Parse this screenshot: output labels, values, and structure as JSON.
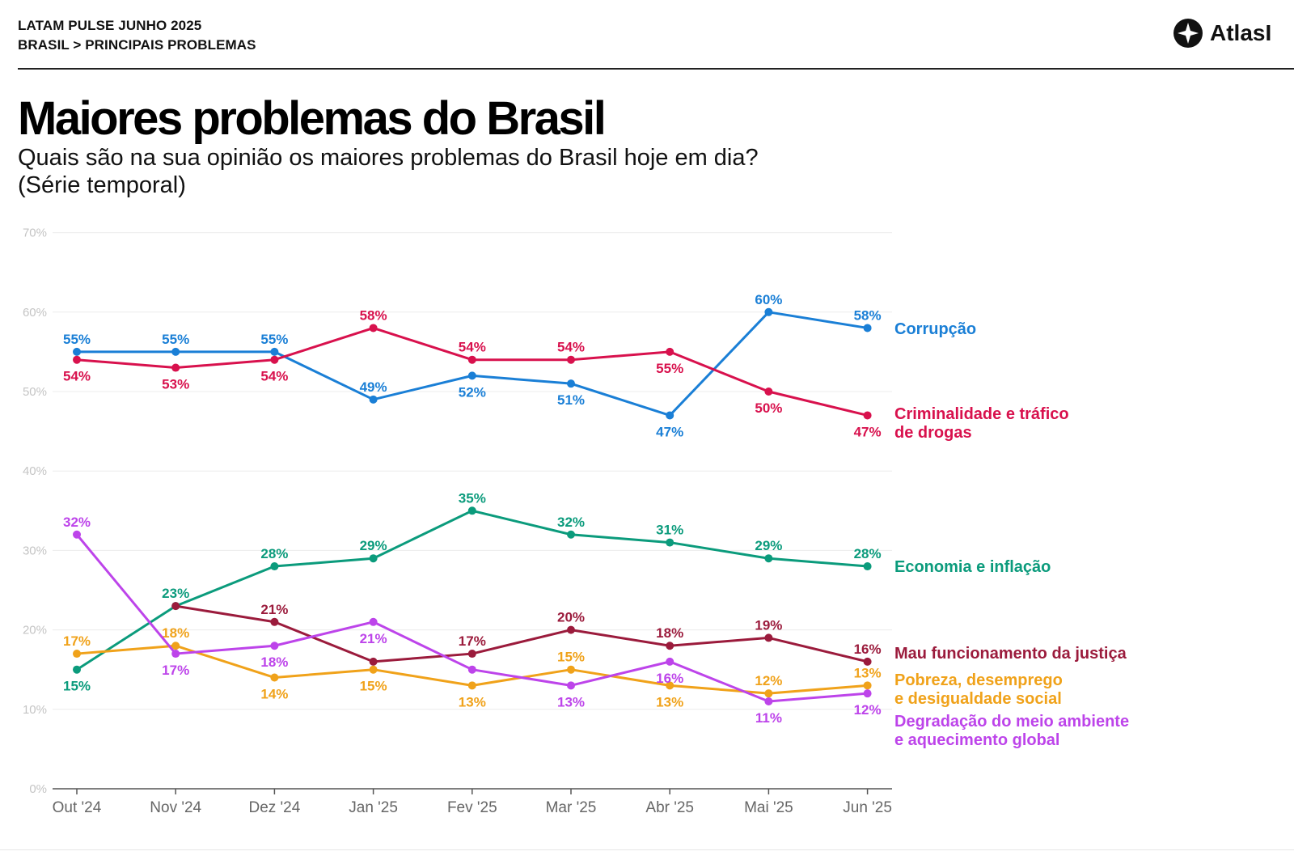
{
  "header": {
    "line1": "LATAM PULSE JUNHO 2025",
    "line2": "BRASIL > PRINCIPAIS PROBLEMAS",
    "logo_text": "AtlasI",
    "logo_icon": "atlas-logo-icon"
  },
  "title": "Maiores problemas do Brasil",
  "subtitle_line1": "Quais são na sua opinião os maiores problemas do Brasil hoje em dia?",
  "subtitle_line2": "(Série temporal)",
  "chart_data": {
    "type": "line",
    "title": "Maiores problemas do Brasil",
    "xlabel": "",
    "ylabel": "",
    "ylim": [
      0,
      70
    ],
    "yticks": [
      0,
      10,
      20,
      30,
      40,
      50,
      60,
      70
    ],
    "ytick_labels": [
      "0%",
      "10%",
      "20%",
      "30%",
      "40%",
      "50%",
      "60%",
      "70%"
    ],
    "grid": true,
    "categories": [
      "Out '24",
      "Nov '24",
      "Dez '24",
      "Jan '25",
      "Fev '25",
      "Mar '25",
      "Abr '25",
      "Mai '25",
      "Jun '25"
    ],
    "series": [
      {
        "key": "corrupcao",
        "name": "Corrupção",
        "legend_lines": [
          "Corrupção"
        ],
        "color": "#1a7fd6",
        "values": [
          55,
          55,
          55,
          49,
          52,
          51,
          47,
          60,
          58
        ],
        "labels": [
          "55%",
          "55%",
          "55%",
          "49%",
          "52%",
          "51%",
          "47%",
          "60%",
          "58%"
        ],
        "label_pos": [
          "above",
          "above",
          "above",
          "above",
          "below",
          "below",
          "below",
          "above",
          "above"
        ]
      },
      {
        "key": "criminalidade",
        "name": "Criminalidade e tráfico de drogas",
        "legend_lines": [
          "Criminalidade e tráfico",
          "de drogas"
        ],
        "color": "#d8114d",
        "values": [
          54,
          53,
          54,
          58,
          54,
          54,
          55,
          50,
          47
        ],
        "labels": [
          "54%",
          "53%",
          "54%",
          "58%",
          "54%",
          "54%",
          "55%",
          "50%",
          "47%"
        ],
        "label_pos": [
          "below",
          "below",
          "below",
          "above",
          "above",
          "above",
          "below",
          "below",
          "below"
        ]
      },
      {
        "key": "economia",
        "name": "Economia e inflação",
        "legend_lines": [
          "Economia e inflação"
        ],
        "color": "#0b9b7c",
        "values": [
          15,
          23,
          28,
          29,
          35,
          32,
          31,
          29,
          28
        ],
        "labels": [
          "15%",
          "23%",
          "28%",
          "29%",
          "35%",
          "32%",
          "31%",
          "29%",
          "28%"
        ],
        "label_pos": [
          "below",
          "above",
          "above",
          "above",
          "above",
          "above",
          "above",
          "above",
          "above"
        ]
      },
      {
        "key": "justica",
        "name": "Mau funcionamento da justiça",
        "legend_lines": [
          "Mau funcionamento da justiça"
        ],
        "color": "#9b1b3c",
        "values": [
          null,
          23,
          21,
          16,
          17,
          20,
          18,
          19,
          16
        ],
        "labels": [
          "",
          "",
          "21%",
          "",
          "17%",
          "20%",
          "18%",
          "19%",
          "16%"
        ],
        "label_pos": [
          "",
          "",
          "above",
          "",
          "above",
          "above",
          "above",
          "above",
          "above"
        ]
      },
      {
        "key": "pobreza",
        "name": "Pobreza, desemprego e desigualdade social",
        "legend_lines": [
          "Pobreza, desemprego",
          "e desigualdade social"
        ],
        "color": "#f0a21a",
        "values": [
          17,
          18,
          14,
          15,
          13,
          15,
          13,
          12,
          13
        ],
        "labels": [
          "17%",
          "18%",
          "14%",
          "15%",
          "13%",
          "15%",
          "13%",
          "12%",
          "13%"
        ],
        "label_pos": [
          "above",
          "above",
          "below",
          "below",
          "below",
          "above",
          "below",
          "above",
          "above"
        ]
      },
      {
        "key": "ambiente",
        "name": "Degradação do meio ambiente e aquecimento global",
        "legend_lines": [
          "Degradação do meio ambiente",
          "e aquecimento global"
        ],
        "color": "#bd44ea",
        "values": [
          32,
          17,
          18,
          21,
          15,
          13,
          16,
          11,
          12
        ],
        "labels": [
          "32%",
          "17%",
          "18%",
          "21%",
          "",
          "13%",
          "16%",
          "11%",
          "12%"
        ],
        "label_pos": [
          "above",
          "below",
          "below",
          "below",
          "",
          "below",
          "below",
          "below",
          "below"
        ]
      }
    ]
  }
}
